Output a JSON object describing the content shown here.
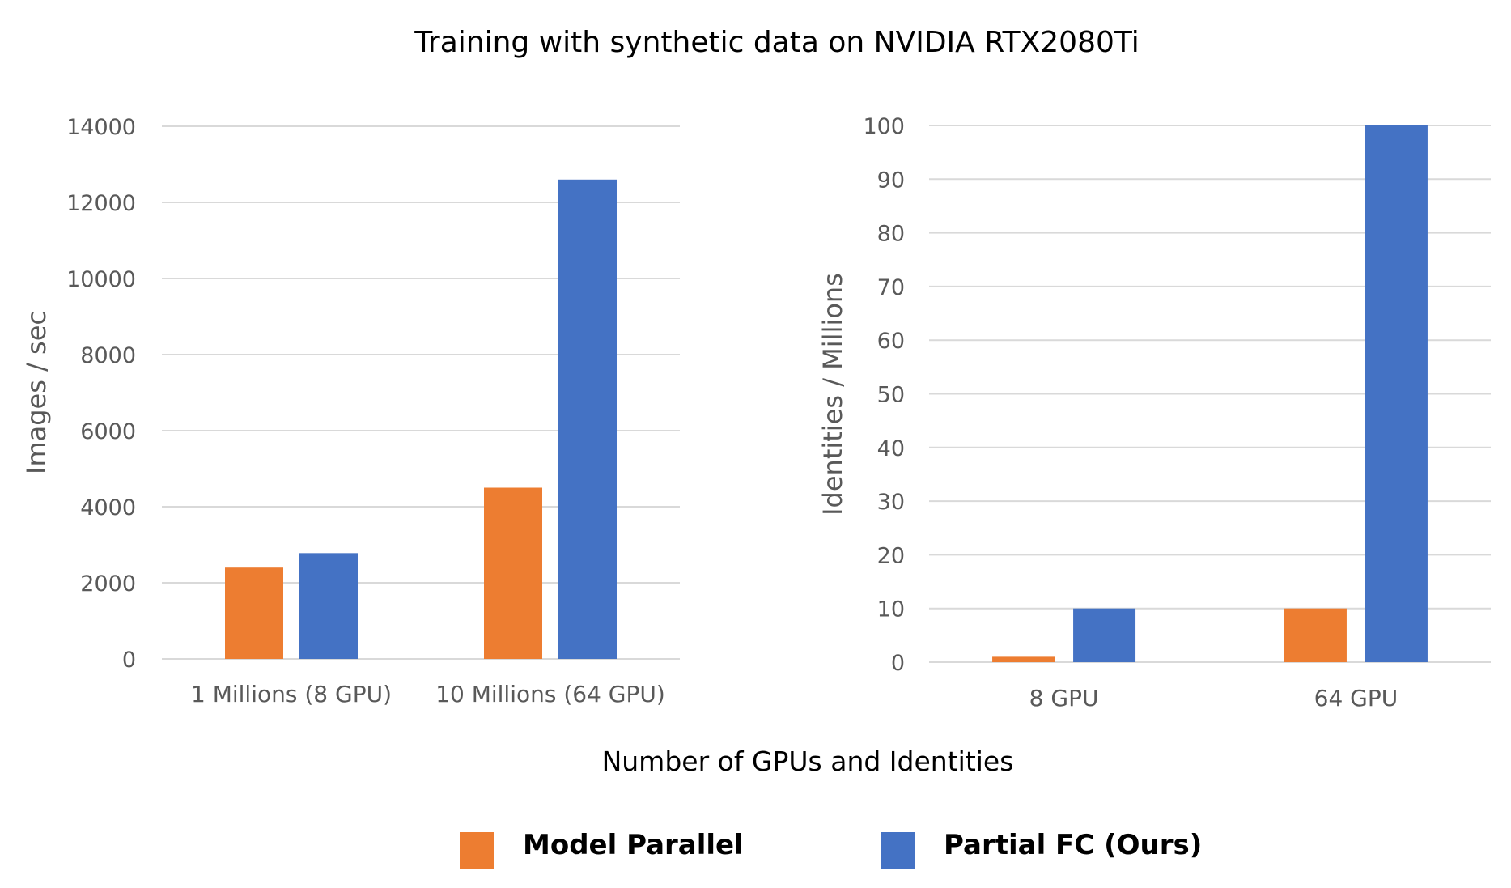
{
  "title": "Training with synthetic data on NVIDIA RTX2080Ti",
  "xlabel": "Number of GPUs and Identities",
  "colors": {
    "model_parallel": "#ED7D31",
    "partial_fc": "#4472C4"
  },
  "legend": {
    "placement": "bottom-center",
    "items": [
      {
        "label": "Model Parallel",
        "color": "#ED7D31"
      },
      {
        "label": "Partial FC (Ours)",
        "color": "#4472C4"
      }
    ]
  },
  "chart_data": [
    {
      "type": "bar",
      "title": "",
      "xlabel": "",
      "ylabel": "Images / sec",
      "ylim": [
        0,
        14000
      ],
      "yticks": [
        "0",
        "2000",
        "4000",
        "6000",
        "8000",
        "10000",
        "12000",
        "14000"
      ],
      "grid": true,
      "categories": [
        "1 Millions (8 GPU)",
        "10 Millions (64 GPU)"
      ],
      "series": [
        {
          "name": "Model Parallel",
          "values": [
            2400,
            4500
          ]
        },
        {
          "name": "Partial FC (Ours)",
          "values": [
            2780,
            12600
          ]
        }
      ]
    },
    {
      "type": "bar",
      "title": "",
      "xlabel": "",
      "ylabel": "Identities / Millions",
      "ylim": [
        0,
        100
      ],
      "yticks": [
        "0",
        "10",
        "20",
        "30",
        "40",
        "50",
        "60",
        "70",
        "80",
        "90",
        "100"
      ],
      "grid": true,
      "categories": [
        "8 GPU",
        "64 GPU"
      ],
      "series": [
        {
          "name": "Model Parallel",
          "values": [
            1,
            10
          ]
        },
        {
          "name": "Partial FC (Ours)",
          "values": [
            10,
            100
          ]
        }
      ]
    }
  ]
}
